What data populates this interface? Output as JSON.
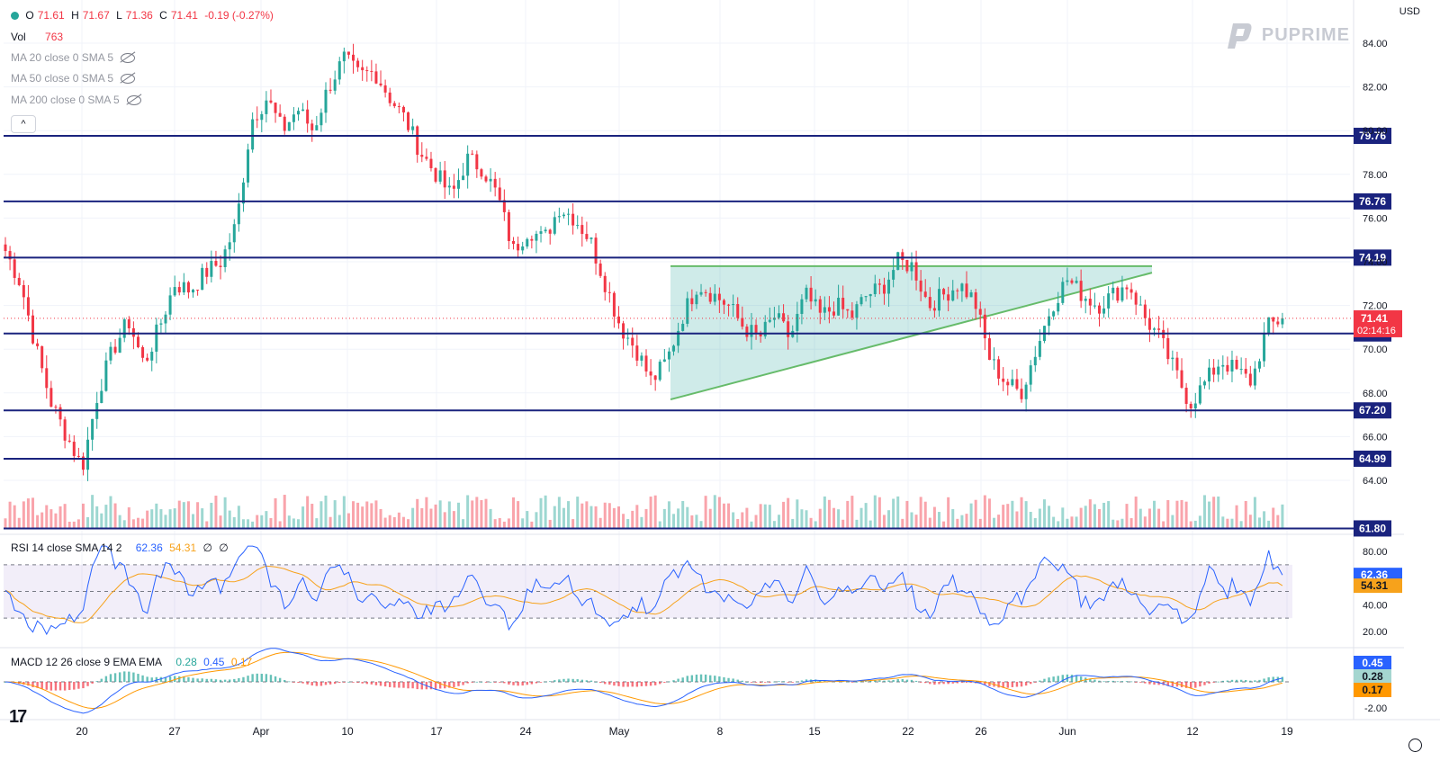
{
  "header": {
    "open_label": "O",
    "open": "71.61",
    "high_label": "H",
    "high": "71.67",
    "low_label": "L",
    "low": "71.36",
    "close_label": "C",
    "close": "71.41",
    "change": "-0.19 (-0.27%)",
    "vol_label": "Vol",
    "vol": "763",
    "ma_lines": [
      "MA 20 close 0 SMA 5",
      "MA 50 close 0 SMA 5",
      "MA 200 close 0 SMA 5"
    ],
    "currency": "USD",
    "brand": "PUPRIME",
    "collapse_glyph": "^"
  },
  "colors": {
    "up": "#26a69a",
    "down": "#f23645",
    "level": "#1a237e",
    "triangle": "#26a69a",
    "rsi": "#2962ff",
    "rsi_ma": "#f7a21b",
    "rsi_band": "#7e57c2",
    "macd": "#2962ff",
    "signal": "#ff9800"
  },
  "chart_data": [
    {
      "type": "candlestick",
      "title": "",
      "ylim": [
        61.8,
        85.0
      ],
      "y_ticks": [
        64.0,
        66.0,
        68.0,
        70.0,
        72.0,
        74.0,
        76.0,
        78.0,
        80.0,
        82.0,
        84.0
      ],
      "x_tick_labels": [
        "20",
        "27",
        "Apr",
        "10",
        "17",
        "24",
        "May",
        "8",
        "15",
        "22",
        "26",
        "Jun",
        "12",
        "19"
      ],
      "levels": [
        79.76,
        76.76,
        74.19,
        70.72,
        67.2,
        64.99,
        61.8
      ],
      "level_labels": [
        "79.76",
        "76.76",
        "74.19",
        "70.72",
        "67.20",
        "64.99",
        "61.80"
      ],
      "last_price": "71.41",
      "countdown": "02:14:16",
      "triangle": {
        "apex_top": [
          73.8,
          73.8
        ],
        "base_start": 67.7,
        "base_end": 73.5
      },
      "keypoints": [
        74.5,
        73.0,
        70.0,
        67.5,
        66.0,
        64.6,
        68.0,
        70.0,
        71.3,
        69.3,
        71.0,
        73.0,
        72.7,
        73.5,
        74.0,
        75.7,
        80.5,
        81.5,
        80.0,
        81.0,
        80.0,
        82.0,
        83.3,
        82.5,
        82.7,
        81.5,
        80.5,
        79.0,
        78.0,
        77.0,
        78.7,
        78.3,
        77.0,
        74.5,
        75.5,
        75.0,
        76.5,
        76.0,
        75.0,
        73.0,
        71.0,
        70.0,
        68.5,
        69.5,
        71.5,
        73.0,
        72.5,
        72.0,
        71.0,
        70.5,
        71.5,
        70.5,
        72.5,
        71.5,
        72.0,
        71.5,
        72.5,
        72.8,
        74.0,
        73.8,
        72.0,
        72.5,
        73.0,
        72.2,
        69.5,
        68.5,
        68.0,
        70.0,
        72.0,
        73.2,
        72.5,
        72.0,
        72.5,
        73.0,
        71.5,
        70.5,
        69.0,
        67.5,
        68.5,
        69.5,
        69.0,
        68.5,
        71.0,
        71.41
      ]
    },
    {
      "type": "line",
      "title": "RSI 14 close SMA 14 2",
      "legend_values": [
        "62.36",
        "54.31",
        "∅",
        "∅"
      ],
      "ylim": [
        10,
        90
      ],
      "y_ticks": [
        20.0,
        40.0,
        60.0,
        80.0
      ],
      "y_tick_labels": [
        "20.00",
        "40.00",
        "60.00",
        "80.00"
      ],
      "bands": [
        30,
        50,
        70
      ],
      "series": [
        {
          "name": "",
          "role": "rsi",
          "last": "62.36"
        },
        {
          "name": "",
          "role": "sma",
          "last": "54.31"
        }
      ]
    },
    {
      "type": "macd",
      "title": "MACD 12 26 close 9 EMA EMA",
      "legend_values": [
        "0.28",
        "0.45",
        "0.17"
      ],
      "value_labels": [
        "0.45",
        "0.28",
        "0.17"
      ],
      "y_ticks": [
        0.0,
        -2.0
      ],
      "y_tick_labels": [
        "0.00",
        "-2.00"
      ],
      "ylim": [
        -2.5,
        1.5
      ]
    }
  ]
}
